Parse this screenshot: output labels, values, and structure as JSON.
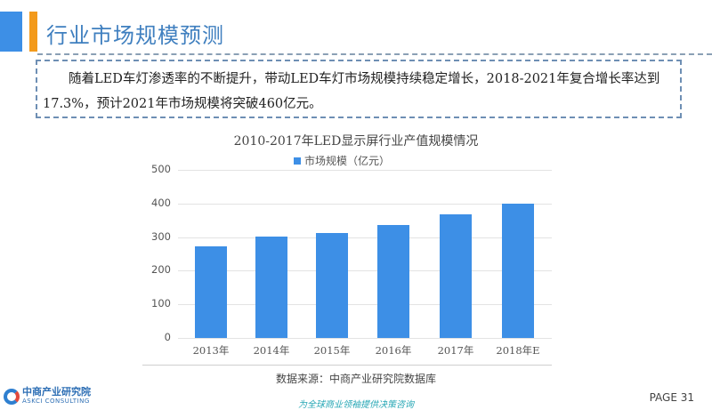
{
  "header": {
    "title": "行业市场规模预测",
    "accent_colors": {
      "blue": "#3d8fe6",
      "orange": "#f39a1b"
    }
  },
  "summary": {
    "text": "随着LED车灯渗透率的不断提升，带动LED车灯市场规模持续稳定增长，2018-2021年复合增长率达到17.3%，预计2021年市场规模将突破460亿元。"
  },
  "chart": {
    "title": "2010-2017年LED显示屏行业产值规模情况",
    "legend_label": "市场规模（亿元）",
    "y_ticks": [
      "0",
      "100",
      "200",
      "300",
      "400",
      "500"
    ],
    "x_labels": [
      "2013年",
      "2014年",
      "2015年",
      "2016年",
      "2017年",
      "2018年E"
    ],
    "source": "数据来源：中商产业研究院数据库"
  },
  "chart_data": {
    "type": "bar",
    "title": "2010-2017年LED显示屏行业产值规模情况",
    "categories": [
      "2013年",
      "2014年",
      "2015年",
      "2016年",
      "2017年",
      "2018年E"
    ],
    "series": [
      {
        "name": "市场规模（亿元）",
        "values": [
          272,
          302,
          312,
          336,
          368,
          400
        ],
        "color": "#3d8fe6"
      }
    ],
    "xlabel": "",
    "ylabel": "",
    "ylim": [
      0,
      500
    ],
    "yticks": [
      0,
      100,
      200,
      300,
      400,
      500
    ],
    "grid": true,
    "legend_position": "top"
  },
  "footer": {
    "logo_cn": "中商产业研究院",
    "logo_en": "ASKCI CONSULTING",
    "slogan": "为全球商业领袖提供决策咨询",
    "page": "PAGE 31"
  }
}
